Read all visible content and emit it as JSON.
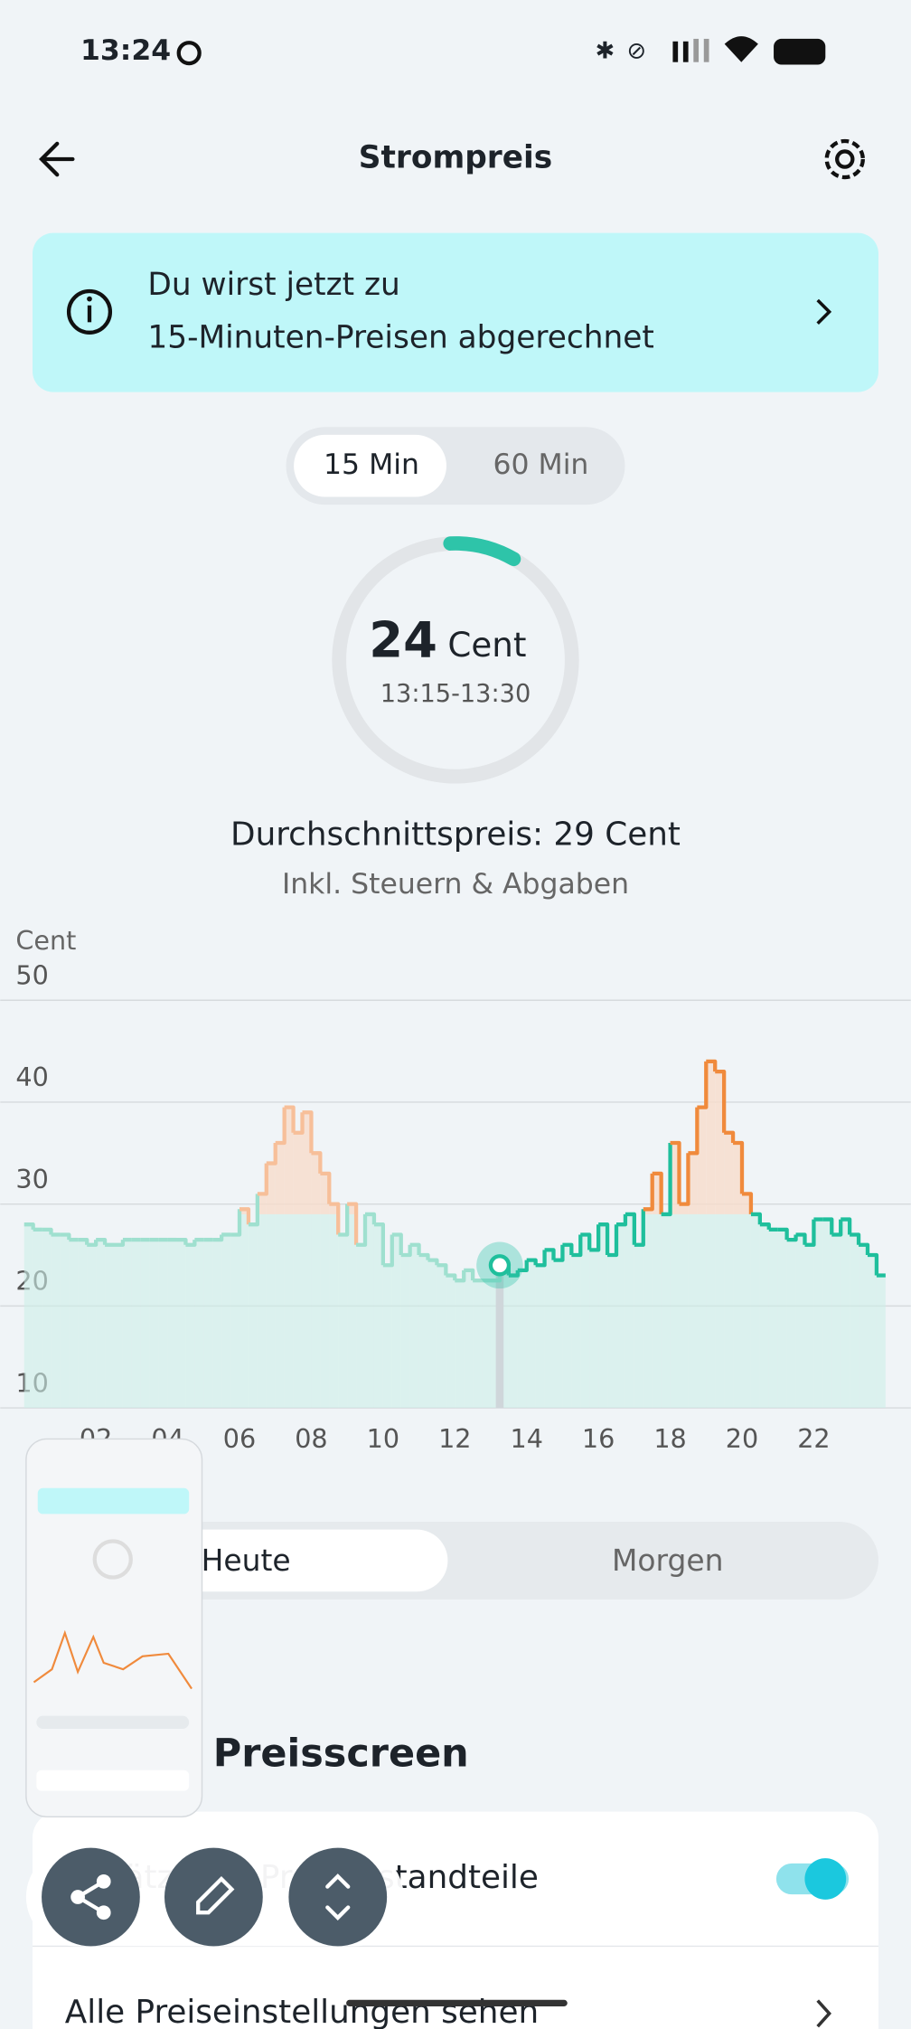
{
  "status": {
    "time": "13:24"
  },
  "header": {
    "title": "Strompreis"
  },
  "banner": {
    "lines": [
      "Du wirst jetzt zu",
      "15-Minuten-Preisen abgerechnet"
    ]
  },
  "interval_toggle": [
    "15 Min",
    "60 Min"
  ],
  "gauge": {
    "unit": "Cent",
    "time": "13:15-13:30"
  },
  "average": {
    "text": "Durchschnittspreis: 29 Cent",
    "note": "Inkl. Steuern & Abgaben"
  },
  "chart_data": {
    "type": "line",
    "y_label": "Cent",
    "average": 29,
    "current": {
      "x": 13.25,
      "value": 24
    },
    "xlim": [
      0,
      24
    ],
    "ylim": [
      10,
      50
    ],
    "yticks": [
      10,
      20,
      30,
      40,
      50
    ],
    "xticks": [
      {
        "value": 2,
        "label": "02"
      },
      {
        "value": 4,
        "label": "04"
      },
      {
        "value": 6,
        "label": "06"
      },
      {
        "value": 8,
        "label": "08"
      },
      10,
      12,
      14,
      16,
      18,
      20,
      22
    ],
    "grid": true,
    "colors": {
      "low": "#1fbf9c",
      "high": "#f08a3c",
      "low_past": "#9fe0cf",
      "high_past": "#f7bf99",
      "low_fill": "#cdeee7",
      "high_fill": "#f8dccb"
    },
    "x": [
      0,
      0.25,
      0.5,
      0.75,
      1,
      1.25,
      1.5,
      1.75,
      2,
      2.25,
      2.5,
      2.75,
      3,
      3.25,
      3.5,
      3.75,
      4,
      4.25,
      4.5,
      4.75,
      5,
      5.25,
      5.5,
      5.75,
      6,
      6.25,
      6.5,
      6.75,
      7,
      7.25,
      7.5,
      7.75,
      8,
      8.25,
      8.5,
      8.75,
      9,
      9.25,
      9.5,
      9.75,
      10,
      10.25,
      10.5,
      10.75,
      11,
      11.25,
      11.5,
      11.75,
      12,
      12.25,
      12.5,
      12.75,
      13,
      13.25,
      13.5,
      13.75,
      14,
      14.25,
      14.5,
      14.75,
      15,
      15.25,
      15.5,
      15.75,
      16,
      16.25,
      16.5,
      16.75,
      17,
      17.25,
      17.5,
      17.75,
      18,
      18.25,
      18.5,
      18.75,
      19,
      19.25,
      19.5,
      19.75,
      20,
      20.25,
      20.5,
      20.75,
      21,
      21.25,
      21.5,
      21.75,
      22,
      22.25,
      22.5,
      22.75,
      23,
      23.25,
      23.5,
      23.75
    ],
    "values": [
      28,
      27.5,
      27.5,
      27,
      27,
      26.5,
      26.5,
      26,
      26.5,
      26,
      26,
      26.5,
      26.5,
      26.5,
      26.5,
      26.5,
      26.5,
      26.5,
      26,
      26.5,
      26.5,
      26.5,
      27,
      27,
      29.5,
      28,
      31,
      34,
      36,
      39.5,
      37,
      39,
      35,
      33,
      30,
      27,
      30,
      26,
      29,
      28,
      24,
      27,
      25,
      26,
      25,
      24.5,
      24,
      23,
      22.5,
      23.5,
      22.5,
      22.5,
      22.5,
      24,
      23,
      23.5,
      24.5,
      24,
      25.5,
      24.5,
      26,
      25,
      27,
      25.5,
      28,
      25,
      28,
      29,
      26,
      29.5,
      33,
      29,
      36,
      30,
      35,
      39.5,
      44,
      43,
      37,
      36,
      31,
      29,
      28,
      27.5,
      27.5,
      26.5,
      27,
      26,
      28.5,
      28.5,
      27,
      28.5,
      27,
      26,
      25,
      23
    ]
  },
  "day_tabs": [
    "Heute",
    "Morgen"
  ],
  "section": {
    "title": "Ansicht Preisscreen",
    "rows": [
      "Zusätzliche Preisbestandteile",
      "Alle Preiseinstellungen sehen"
    ]
  }
}
